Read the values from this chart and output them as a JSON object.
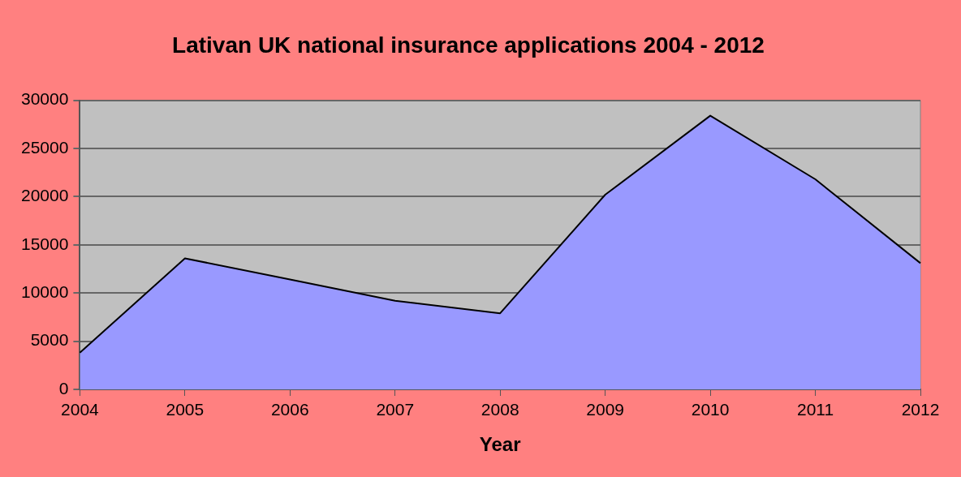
{
  "chart_data": {
    "type": "area",
    "title": "Lativan UK national insurance applications 2004 - 2012",
    "xlabel": "Year",
    "categories": [
      "2004",
      "2005",
      "2006",
      "2007",
      "2008",
      "2009",
      "2010",
      "2011",
      "2012"
    ],
    "series": [
      {
        "color": "#9999ff",
        "values": [
          3800,
          13600,
          11400,
          9200,
          7900,
          20200,
          28400,
          21800,
          13100
        ]
      }
    ],
    "ylim": [
      0,
      30000
    ],
    "yticks": [
      0,
      5000,
      10000,
      15000,
      20000,
      25000,
      30000
    ],
    "grid": "y",
    "legend": false
  }
}
